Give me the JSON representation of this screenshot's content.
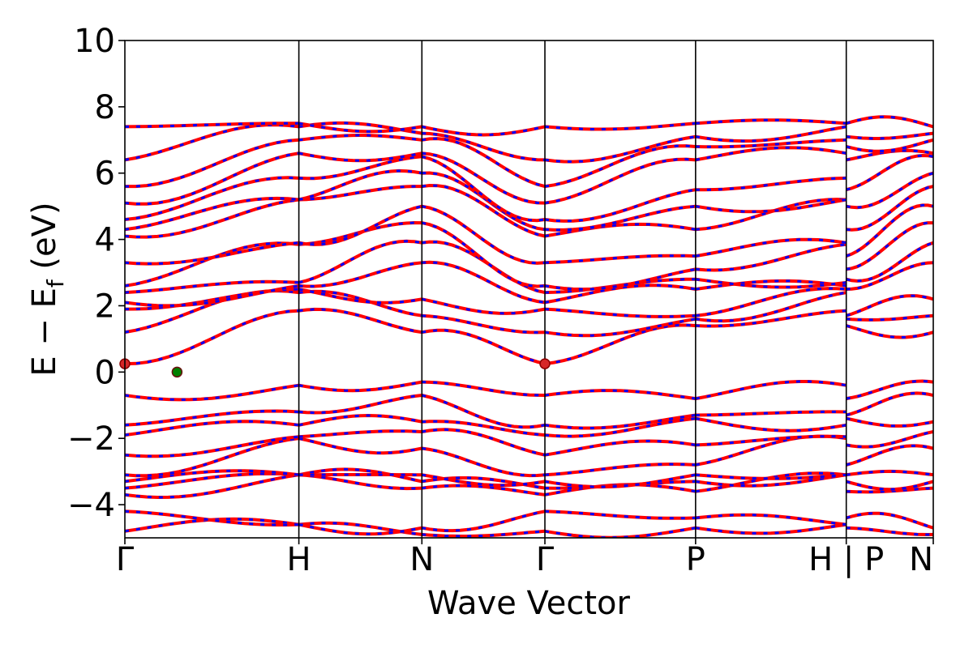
{
  "chart_data": {
    "type": "line",
    "xlabel": "Wave Vector",
    "ylabel": "E − E",
    "ylabel_sub": "f",
    "ylabel_unit": " (eV)",
    "ylim": [
      -5,
      10
    ],
    "yticks": [
      "−4",
      "−2",
      "0",
      "2",
      "4",
      "6",
      "8",
      "10"
    ],
    "ytick_values": [
      -4,
      -2,
      0,
      2,
      4,
      6,
      8,
      10
    ],
    "kpath": [
      {
        "label": "Γ",
        "k": 0.0
      },
      {
        "label": "H",
        "k": 1.0
      },
      {
        "label": "N",
        "k": 1.707
      },
      {
        "label": "Γ",
        "k": 2.414
      },
      {
        "label": "P",
        "k": 3.28
      },
      {
        "label": "H | P",
        "k": 4.146
      },
      {
        "label": "N",
        "k": 4.646
      }
    ],
    "colors": {
      "band_a": "#ff0000",
      "band_b": "#0000ff",
      "frame": "#000000",
      "cbm": "#d62728",
      "vbm": "#008000"
    },
    "markers": [
      {
        "name": "conduction band minimum",
        "k": 0.0,
        "E": 0.25,
        "color": "#d62728"
      },
      {
        "name": "conduction band minimum",
        "k": 2.414,
        "E": 0.25,
        "color": "#d62728"
      },
      {
        "name": "valence band maximum",
        "k": 0.3,
        "E": 0.0,
        "color": "#008000"
      }
    ],
    "segments": [
      {
        "from": "Γ",
        "to": "H",
        "start": [
          -4.8,
          -4.2,
          -3.7,
          -3.5,
          -3.3,
          -3.1,
          -2.5,
          -1.9,
          -1.6,
          -0.7,
          0.25,
          1.2,
          1.9,
          2.1,
          2.4,
          2.6,
          3.3,
          4.1,
          4.3,
          4.6,
          5.1,
          5.6,
          6.4,
          7.4
        ],
        "end": [
          -4.6,
          -4.6,
          -3.1,
          -3.1,
          -3.1,
          -2.0,
          -1.95,
          -1.6,
          -1.2,
          -0.4,
          1.85,
          2.4,
          2.5,
          2.6,
          2.7,
          3.85,
          3.9,
          5.2,
          5.2,
          5.85,
          6.6,
          7.0,
          7.4,
          7.5
        ]
      },
      {
        "from": "H",
        "to": "N",
        "start": [
          -4.6,
          -4.6,
          -3.1,
          -3.1,
          -3.1,
          -2.0,
          -1.95,
          -1.6,
          -1.2,
          -0.4,
          1.85,
          2.4,
          2.5,
          2.6,
          2.7,
          3.85,
          3.9,
          5.2,
          5.2,
          5.85,
          6.6,
          7.0,
          7.4,
          7.5
        ],
        "end": [
          -4.9,
          -4.7,
          -3.5,
          -3.3,
          -3.1,
          -2.3,
          -1.8,
          -1.5,
          -0.7,
          -0.3,
          1.2,
          1.7,
          2.2,
          3.3,
          3.9,
          4.5,
          5.0,
          5.6,
          6.0,
          6.5,
          6.6,
          7.0,
          7.2,
          7.4
        ]
      },
      {
        "from": "N",
        "to": "Γ",
        "start": [
          -4.9,
          -4.7,
          -3.5,
          -3.3,
          -3.1,
          -2.3,
          -1.8,
          -1.5,
          -0.7,
          -0.3,
          1.2,
          1.7,
          2.2,
          3.3,
          3.9,
          4.5,
          5.0,
          5.6,
          6.0,
          6.5,
          6.6,
          7.0,
          7.2,
          7.4
        ],
        "end": [
          -4.8,
          -4.2,
          -3.7,
          -3.5,
          -3.3,
          -3.1,
          -2.5,
          -1.9,
          -1.6,
          -0.7,
          0.25,
          1.2,
          1.9,
          2.1,
          2.4,
          2.6,
          3.3,
          4.1,
          4.3,
          4.6,
          5.1,
          5.6,
          6.4,
          7.4
        ]
      },
      {
        "from": "Γ",
        "to": "P",
        "start": [
          -4.8,
          -4.2,
          -3.7,
          -3.5,
          -3.3,
          -3.1,
          -2.5,
          -1.9,
          -1.6,
          -0.7,
          0.25,
          1.2,
          1.9,
          2.1,
          2.4,
          2.6,
          3.3,
          4.1,
          4.3,
          4.6,
          5.1,
          5.6,
          6.4,
          7.4
        ],
        "end": [
          -4.7,
          -4.4,
          -3.6,
          -3.3,
          -3.1,
          -2.8,
          -2.2,
          -1.4,
          -1.3,
          -0.8,
          1.4,
          1.6,
          1.7,
          2.5,
          2.8,
          3.1,
          3.5,
          4.3,
          5.0,
          5.5,
          6.4,
          6.8,
          7.1,
          7.5
        ]
      },
      {
        "from": "P",
        "to": "H",
        "start": [
          -4.7,
          -4.4,
          -3.6,
          -3.3,
          -3.1,
          -2.8,
          -2.2,
          -1.4,
          -1.3,
          -0.8,
          1.4,
          1.6,
          1.7,
          2.5,
          2.8,
          3.1,
          3.5,
          4.3,
          5.0,
          5.5,
          6.4,
          6.8,
          7.1,
          7.5
        ],
        "end": [
          -4.6,
          -4.6,
          -3.1,
          -3.1,
          -3.1,
          -2.0,
          -1.95,
          -1.6,
          -1.2,
          -0.4,
          1.85,
          2.4,
          2.5,
          2.6,
          2.7,
          3.85,
          3.9,
          5.2,
          5.2,
          5.85,
          6.6,
          7.0,
          7.4,
          7.5
        ]
      },
      {
        "from": "P",
        "to": "N",
        "start": [
          -4.7,
          -4.4,
          -3.6,
          -3.3,
          -3.1,
          -2.8,
          -2.2,
          -1.4,
          -1.3,
          -0.8,
          1.4,
          1.6,
          1.7,
          2.5,
          2.8,
          3.1,
          3.5,
          4.3,
          5.0,
          5.5,
          6.4,
          6.8,
          7.1,
          7.5
        ],
        "end": [
          -4.9,
          -4.7,
          -3.5,
          -3.3,
          -3.1,
          -2.3,
          -1.8,
          -1.5,
          -0.7,
          -0.3,
          1.2,
          1.7,
          2.2,
          3.3,
          3.9,
          4.5,
          5.0,
          5.6,
          6.0,
          6.5,
          6.6,
          7.0,
          7.2,
          7.4
        ]
      }
    ]
  }
}
